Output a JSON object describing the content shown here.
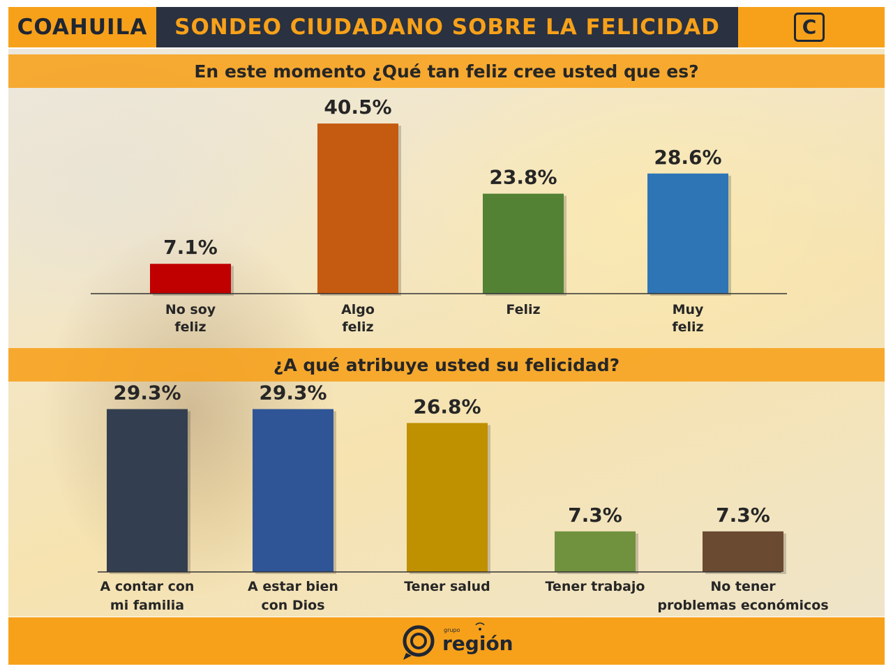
{
  "header": {
    "region": "COAHUILA",
    "title": "SONDEO CIUDADANO SOBRE LA FELICIDAD",
    "logo_letter": "C"
  },
  "colors": {
    "orange": "#f7a11a",
    "navy": "#2a3140"
  },
  "chart_data": [
    {
      "type": "bar",
      "title": "En este momento ¿Qué tan feliz cree usted que es?",
      "categories": [
        [
          "No soy",
          "feliz"
        ],
        [
          "Algo",
          "feliz"
        ],
        [
          "Feliz"
        ],
        [
          "Muy",
          "feliz"
        ]
      ],
      "values": [
        7.1,
        40.5,
        23.8,
        28.6
      ],
      "value_labels": [
        "7.1%",
        "40.5%",
        "23.8%",
        "28.6%"
      ],
      "colors": [
        "#c00000",
        "#c55a11",
        "#548235",
        "#2e75b6"
      ],
      "unit": "%",
      "ylim": [
        0,
        45
      ],
      "grid": false
    },
    {
      "type": "bar",
      "title": "¿A qué atribuye usted su felicidad?",
      "categories": [
        [
          "A contar con",
          "mi familia"
        ],
        [
          "A estar bien",
          "con Dios"
        ],
        [
          "Tener salud"
        ],
        [
          "Tener trabajo"
        ],
        [
          "No tener",
          "problemas económicos"
        ]
      ],
      "values": [
        29.3,
        29.3,
        26.8,
        7.3,
        7.3
      ],
      "value_labels": [
        "29.3%",
        "29.3%",
        "26.8%",
        "7.3%",
        "7.3%"
      ],
      "colors": [
        "#333f50",
        "#2f5597",
        "#bf9000",
        "#70913e",
        "#6b4a32"
      ],
      "unit": "%",
      "ylim": [
        0,
        32
      ],
      "grid": false
    }
  ],
  "footer": {
    "brand_small": "grupo",
    "brand": "región"
  }
}
